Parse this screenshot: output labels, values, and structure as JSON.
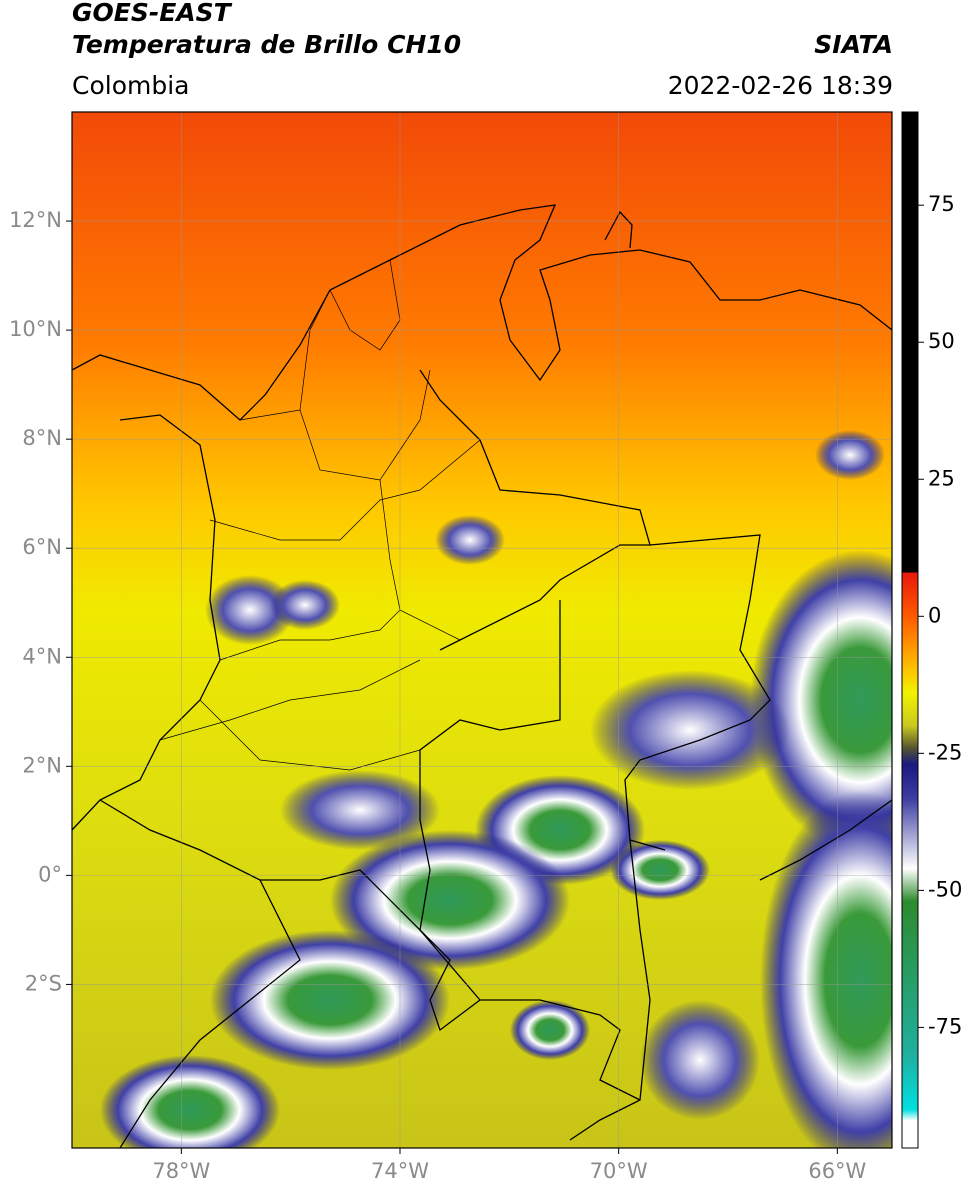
{
  "header": {
    "satellite": "GOES-EAST",
    "product": "Temperatura de Brillo CH10",
    "agency": "SIATA",
    "region": "Colombia",
    "datetime": "2022-02-26 18:39"
  },
  "map": {
    "lonlim": [
      -80,
      -65
    ],
    "latlim": [
      -5,
      14
    ],
    "grid": true,
    "lonticks": [
      {
        "value": -78,
        "label": "78°W"
      },
      {
        "value": -74,
        "label": "74°W"
      },
      {
        "value": -70,
        "label": "70°W"
      },
      {
        "value": -66,
        "label": "66°W"
      }
    ],
    "latticks": [
      {
        "value": 12,
        "label": "12°N"
      },
      {
        "value": 10,
        "label": "10°N"
      },
      {
        "value": 8,
        "label": "8°N"
      },
      {
        "value": 6,
        "label": "6°N"
      },
      {
        "value": 4,
        "label": "4°N"
      },
      {
        "value": 2,
        "label": "2°N"
      },
      {
        "value": 0,
        "label": "0°"
      },
      {
        "value": -2,
        "label": "2°S"
      }
    ]
  },
  "colorbar": {
    "lim": [
      -97,
      92
    ],
    "ticks": [
      75,
      50,
      25,
      0,
      -25,
      -50,
      -75
    ],
    "colormap": [
      {
        "value": 92,
        "color": "#000000"
      },
      {
        "value": 8,
        "color": "#000000"
      },
      {
        "value": 8,
        "color": "#e8180c"
      },
      {
        "value": 0,
        "color": "#ff5a00"
      },
      {
        "value": -8,
        "color": "#ffb000"
      },
      {
        "value": -14,
        "color": "#f2f200"
      },
      {
        "value": -20,
        "color": "#c8c820"
      },
      {
        "value": -24,
        "color": "#555530"
      },
      {
        "value": -27,
        "color": "#1a1a80"
      },
      {
        "value": -33,
        "color": "#3a3aa0"
      },
      {
        "value": -46,
        "color": "#ffffff"
      },
      {
        "value": -52,
        "color": "#2e8b2e"
      },
      {
        "value": -80,
        "color": "#20b0a0"
      },
      {
        "value": -90,
        "color": "#00e0e0"
      },
      {
        "value": -92,
        "color": "#ffffff"
      },
      {
        "value": -97,
        "color": "#ffffff"
      }
    ]
  }
}
